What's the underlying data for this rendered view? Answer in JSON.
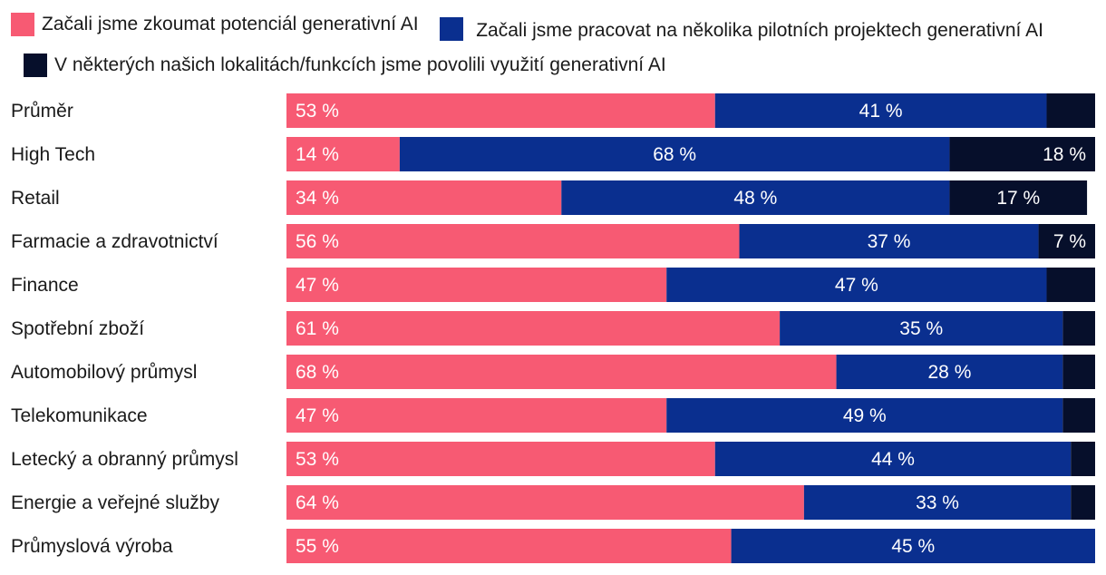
{
  "chart_data": {
    "type": "bar",
    "orientation": "horizontal",
    "stacked": true,
    "xlim": [
      0,
      100
    ],
    "categories": [
      "Průměr",
      "High Tech",
      "Retail",
      "Farmacie a zdravotnictví",
      "Finance",
      "Spotřební zboží",
      "Automobilový průmysl",
      "Telekomunikace",
      "Letecký a obranný průmysl",
      "Energie a veřejné služby",
      "Průmyslová výroba"
    ],
    "series": [
      {
        "name": "Začali jsme zkoumat potenciál generativní AI",
        "color": "#f75a73",
        "values": [
          53,
          14,
          34,
          56,
          47,
          61,
          68,
          47,
          53,
          64,
          55
        ],
        "labels": [
          "53 %",
          "14 %",
          "34 %",
          "56 %",
          "47 %",
          "61 %",
          "68 %",
          "47 %",
          "53 %",
          "64 %",
          "55 %"
        ]
      },
      {
        "name": "Začali jsme pracovat na několika pilotních projektech generativní AI",
        "color": "#0a2f8f",
        "values": [
          41,
          68,
          48,
          37,
          47,
          35,
          28,
          49,
          44,
          33,
          45
        ],
        "labels": [
          "41 %",
          "68 %",
          "48 %",
          "37 %",
          "47 %",
          "35 %",
          "28 %",
          "49 %",
          "44 %",
          "33 %",
          "45 %"
        ]
      },
      {
        "name": "V některých našich lokalitách/funkcích jsme povolili využití generativní AI",
        "color": "#060f2b",
        "values": [
          6,
          18,
          17,
          7,
          6,
          4,
          4,
          4,
          3,
          3,
          0
        ],
        "labels": [
          "",
          "18 %",
          "17 %",
          "7 %",
          "",
          "",
          "",
          "",
          "",
          "",
          ""
        ]
      }
    ]
  }
}
